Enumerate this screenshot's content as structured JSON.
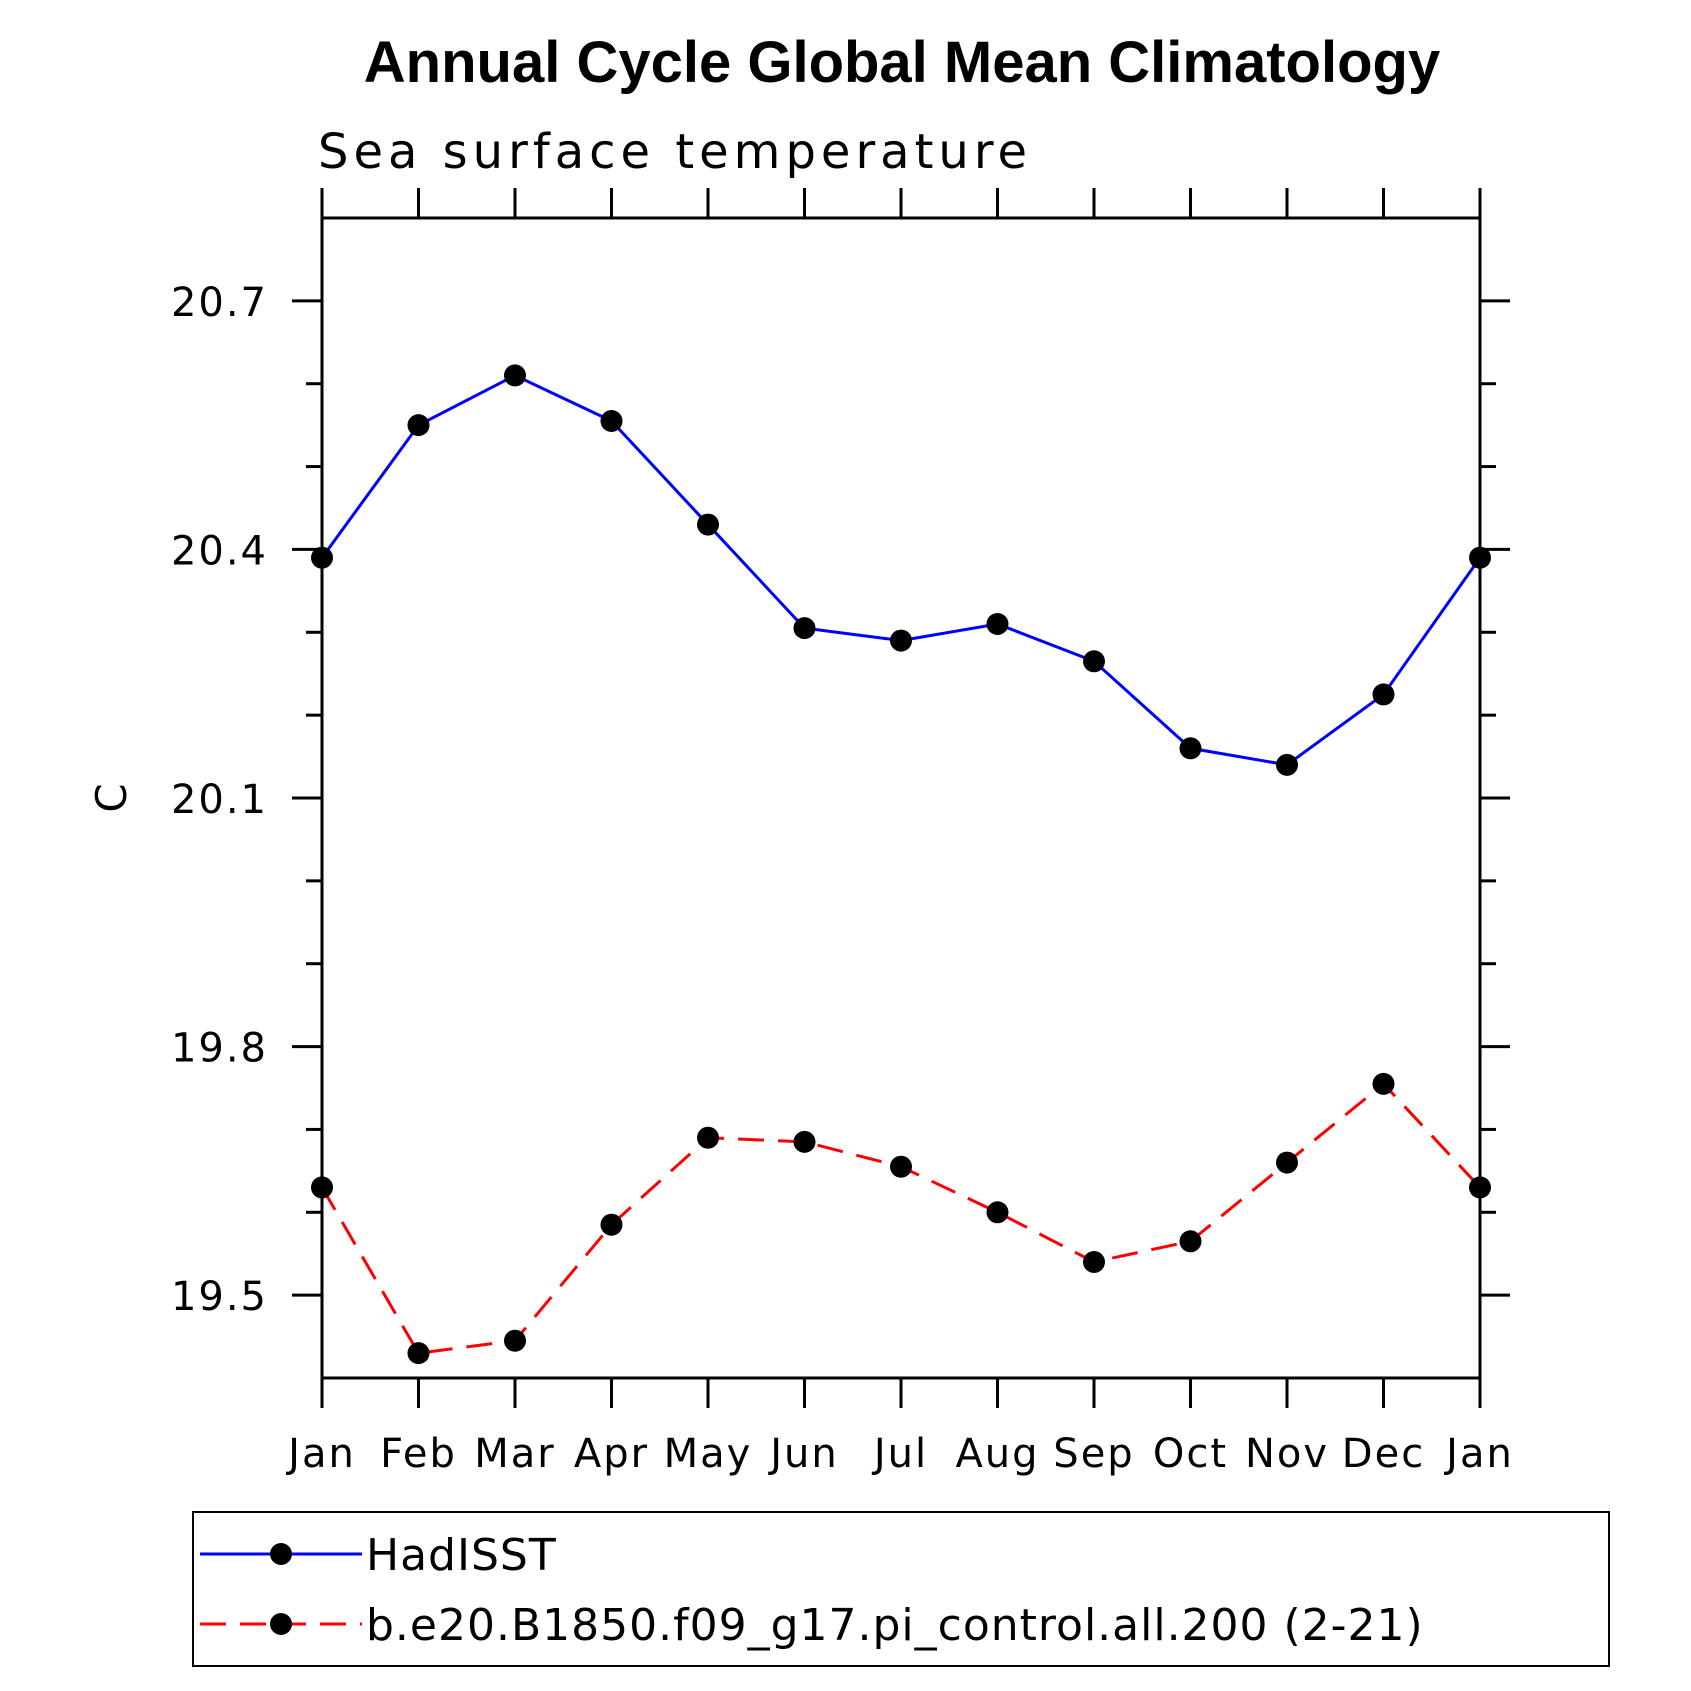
{
  "chart_data": {
    "type": "line",
    "title": "Annual Cycle Global Mean Climatology",
    "subtitle": "Sea surface temperature",
    "ylabel": "C",
    "xlabel": "",
    "categories": [
      "Jan",
      "Feb",
      "Mar",
      "Apr",
      "May",
      "Jun",
      "Jul",
      "Aug",
      "Sep",
      "Oct",
      "Nov",
      "Dec",
      "Jan"
    ],
    "ylim": [
      19.4,
      20.8
    ],
    "yticks": [
      19.5,
      19.8,
      20.1,
      20.4,
      20.7
    ],
    "ytick_labels": [
      "19.5",
      "19.8",
      "20.1",
      "20.4",
      "20.7"
    ],
    "grid": false,
    "legend_position": "bottom",
    "series": [
      {
        "name": "HadISST",
        "color": "#0000ff",
        "dash": "solid",
        "marker": "circle",
        "values": [
          20.39,
          20.55,
          20.61,
          20.555,
          20.43,
          20.305,
          20.29,
          20.31,
          20.265,
          20.16,
          20.14,
          20.225,
          20.39
        ]
      },
      {
        "name": "b.e20.B1850.f09_g17.pi_control.all.200 (2-21)",
        "color": "#ff0000",
        "dash": "dashed",
        "marker": "circle",
        "values": [
          19.63,
          19.43,
          19.445,
          19.585,
          19.69,
          19.685,
          19.655,
          19.6,
          19.54,
          19.565,
          19.66,
          19.755,
          19.63
        ]
      }
    ]
  }
}
